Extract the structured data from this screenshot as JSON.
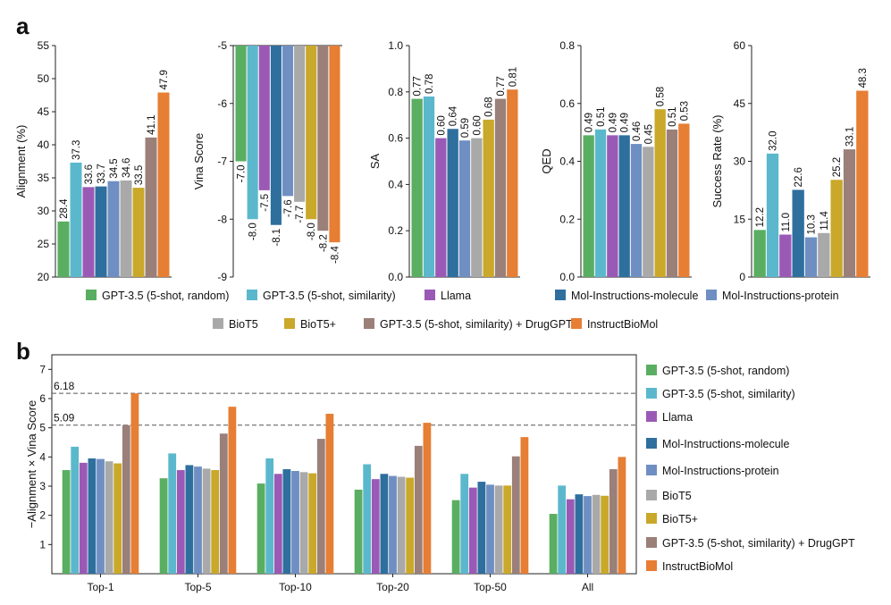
{
  "panel_labels": {
    "a": "a",
    "b": "b"
  },
  "colors": {
    "GPT-3.5 (5-shot, random)": "#5aae61",
    "GPT-3.5 (5-shot, similarity)": "#5bb8cc",
    "Llama": "#9b59b6",
    "Mol-Instructions-molecule": "#2e6f9e",
    "Mol-Instructions-protein": "#6f8fc2",
    "BioT5": "#a9a9a9",
    "BioT5+": "#c9a82a",
    "GPT-3.5 (5-shot, similarity) + DrugGPT": "#9a8079",
    "InstructBioMol": "#e67e34"
  },
  "legend_a": {
    "row1": [
      "GPT-3.5 (5-shot, random)",
      "GPT-3.5 (5-shot, similarity)",
      "Llama",
      "Mol-Instructions-molecule",
      "Mol-Instructions-protein"
    ],
    "row2": [
      "BioT5",
      "BioT5+",
      "GPT-3.5 (5-shot, similarity) + DrugGPT",
      "InstructBioMol"
    ]
  },
  "chart_data": [
    {
      "type": "bar",
      "panel": "a",
      "ylabel": "Alignment (%)",
      "ylim": [
        20,
        55
      ],
      "yticks": [
        20,
        25,
        30,
        35,
        40,
        45,
        50,
        55
      ],
      "values": [
        28.4,
        37.3,
        33.6,
        33.7,
        34.5,
        34.6,
        33.5,
        41.1,
        47.9
      ],
      "labels": [
        "28.4",
        "37.3",
        "33.6",
        "33.7",
        "34.5",
        "34.6",
        "33.5",
        "41.1",
        "47.9"
      ]
    },
    {
      "type": "bar",
      "panel": "a",
      "ylabel": "Vina Score",
      "ylim": [
        -9,
        -5
      ],
      "yticks": [
        -9,
        -8,
        -7,
        -6,
        -5
      ],
      "inverted": true,
      "values": [
        -7.0,
        -8.0,
        -7.5,
        -8.1,
        -7.6,
        -7.7,
        -8.0,
        -8.2,
        -8.4
      ],
      "labels": [
        "-7.0",
        "-8.0",
        "-7.5",
        "-8.1",
        "-7.6",
        "-7.7",
        "-8.0",
        "-8.2",
        "-8.4"
      ]
    },
    {
      "type": "bar",
      "panel": "a",
      "ylabel": "SA",
      "ylim": [
        0.0,
        1.0
      ],
      "yticks": [
        0.0,
        0.2,
        0.4,
        0.6,
        0.8,
        1.0
      ],
      "tick_decimals": 1,
      "values": [
        0.77,
        0.78,
        0.6,
        0.64,
        0.59,
        0.6,
        0.68,
        0.77,
        0.81
      ],
      "labels": [
        "0.77",
        "0.78",
        "0.60",
        "0.64",
        "0.59",
        "0.60",
        "0.68",
        "0.77",
        "0.81"
      ]
    },
    {
      "type": "bar",
      "panel": "a",
      "ylabel": "QED",
      "ylim": [
        0.0,
        0.8
      ],
      "yticks": [
        0.0,
        0.2,
        0.4,
        0.6,
        0.8
      ],
      "tick_decimals": 1,
      "values": [
        0.49,
        0.51,
        0.49,
        0.49,
        0.46,
        0.45,
        0.58,
        0.51,
        0.53
      ],
      "labels": [
        "0.49",
        "0.51",
        "0.49",
        "0.49",
        "0.46",
        "0.45",
        "0.58",
        "0.51",
        "0.53"
      ]
    },
    {
      "type": "bar",
      "panel": "a",
      "ylabel": "Success Rate (%)",
      "ylim": [
        0,
        60
      ],
      "yticks": [
        0,
        15,
        30,
        45,
        60
      ],
      "values": [
        12.2,
        32.0,
        11.0,
        22.6,
        10.3,
        11.4,
        25.2,
        33.1,
        48.3
      ],
      "labels": [
        "12.2",
        "32.0",
        "11.0",
        "22.6",
        "10.3",
        "11.4",
        "25.2",
        "33.1",
        "48.3"
      ]
    },
    {
      "type": "bar",
      "panel": "b",
      "ylabel": "−Alignment × Vina Score",
      "ylim": [
        0,
        7.5
      ],
      "yticks": [
        1,
        2,
        3,
        4,
        5,
        6,
        7
      ],
      "categories": [
        "Top-1",
        "Top-5",
        "Top-10",
        "Top-20",
        "Top-50",
        "All"
      ],
      "reference_lines": [
        {
          "value": 6.18,
          "label": "6.18"
        },
        {
          "value": 5.09,
          "label": "5.09"
        }
      ],
      "series": [
        {
          "name": "GPT-3.5 (5-shot, random)",
          "values": [
            3.55,
            3.27,
            3.09,
            2.88,
            2.52,
            2.05
          ]
        },
        {
          "name": "GPT-3.5 (5-shot, similarity)",
          "values": [
            4.35,
            4.12,
            3.95,
            3.75,
            3.42,
            3.02
          ]
        },
        {
          "name": "Llama",
          "values": [
            3.8,
            3.55,
            3.42,
            3.24,
            2.95,
            2.55
          ]
        },
        {
          "name": "Mol-Instructions-molecule",
          "values": [
            3.95,
            3.72,
            3.58,
            3.42,
            3.15,
            2.72
          ]
        },
        {
          "name": "Mol-Instructions-protein",
          "values": [
            3.93,
            3.67,
            3.52,
            3.35,
            3.05,
            2.66
          ]
        },
        {
          "name": "BioT5",
          "values": [
            3.85,
            3.6,
            3.48,
            3.32,
            3.02,
            2.7
          ]
        },
        {
          "name": "BioT5+",
          "values": [
            3.78,
            3.55,
            3.44,
            3.29,
            3.02,
            2.67
          ]
        },
        {
          "name": "GPT-3.5 (5-shot, similarity) + DrugGPT",
          "values": [
            5.09,
            4.8,
            4.62,
            4.38,
            4.02,
            3.58
          ]
        },
        {
          "name": "InstructBioMol",
          "values": [
            6.18,
            5.72,
            5.48,
            5.17,
            4.68,
            4.0
          ]
        }
      ]
    }
  ]
}
